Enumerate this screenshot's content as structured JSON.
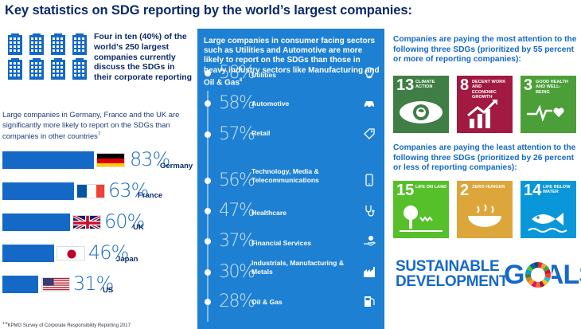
{
  "title": "Key statistics on SDG reporting by the world’s largest companies:",
  "intro": "Four in ten (40%) of the world’s 250 largest companies currently discuss the SDGs in their corporate reporting",
  "left_desc": "Large companies in Germany, France and the UK are significantly more likely to report on the SDGs than companies in other countries",
  "left_desc_sup": "7",
  "countries": [
    {
      "name": "Germany",
      "pct": "83%",
      "value": 83,
      "flag": "germany-flag"
    },
    {
      "name": "France",
      "pct": "63%",
      "value": 63,
      "flag": "france-flag"
    },
    {
      "name": "UK",
      "pct": "60%",
      "value": 60,
      "flag": "uk-flag"
    },
    {
      "name": "Japan",
      "pct": "46%",
      "value": 46,
      "flag": "japan-flag"
    },
    {
      "name": "US",
      "pct": "31%",
      "value": 31,
      "flag": "us-flag"
    }
  ],
  "source": "KPMG Survey of Corporate Responsibility Reporting 2017",
  "source_sup": "1-8",
  "middle": {
    "heading": "Large companies in consumer facing sectors such as Utilities and Automotive are more likely to report on the SDGs than those in heavy industry sectors like Manufacturing and Oil & Gas",
    "heading_sup": "8",
    "sectors": [
      {
        "pct": "58%",
        "name": "Utilities",
        "icon": "lightbulb-icon"
      },
      {
        "pct": "58%",
        "name": "Automotive",
        "icon": "car-icon"
      },
      {
        "pct": "57%",
        "name": "Retail",
        "icon": "price-tag-icon"
      },
      {
        "pct": "56%",
        "name": "Technology, Media & Telecommunications",
        "icon": "smartphone-icon"
      },
      {
        "pct": "47%",
        "name": "Healthcare",
        "icon": "stethoscope-icon"
      },
      {
        "pct": "37%",
        "name": "Financial Services",
        "icon": "money-hand-icon"
      },
      {
        "pct": "30%",
        "name": "Industrials, Manufacturing & Metals",
        "icon": "factory-icon"
      },
      {
        "pct": "28%",
        "name": "Oil & Gas",
        "icon": "fuel-pump-icon"
      }
    ]
  },
  "most_heading": "Companies are paying the most attention to the following three SDGs (prioritized by 55 percent or more of reporting companies):",
  "least_heading": "Companies are paying the least attention to the following three SDGs (prioritized by 26 percent or less of reporting companies):",
  "most_sdgs": [
    {
      "num": "13",
      "label": "CLIMATE ACTION",
      "color": "#3f7e44",
      "icon": "eye-globe-icon"
    },
    {
      "num": "8",
      "label": "DECENT WORK AND ECONOMIC GROWTH",
      "color": "#a21942",
      "icon": "growth-chart-icon"
    },
    {
      "num": "3",
      "label": "GOOD HEALTH AND WELL-BEING",
      "color": "#4c9f38",
      "icon": "heartbeat-icon"
    }
  ],
  "least_sdgs": [
    {
      "num": "15",
      "label": "LIFE ON LAND",
      "color": "#56c02b",
      "icon": "tree-icon"
    },
    {
      "num": "2",
      "label": "ZERO HUNGER",
      "color": "#dda63a",
      "icon": "food-bowl-icon"
    },
    {
      "num": "14",
      "label": "LIFE BELOW WATER",
      "color": "#0a97d9",
      "icon": "fish-icon"
    }
  ],
  "logo": {
    "line1": "SUSTAINABLE",
    "line2": "DEVELOPMENT",
    "goals": "GOALS"
  },
  "colors": {
    "navy": "#0b2a6b",
    "blue": "#1469c7",
    "panel": "#1e80d3"
  }
}
